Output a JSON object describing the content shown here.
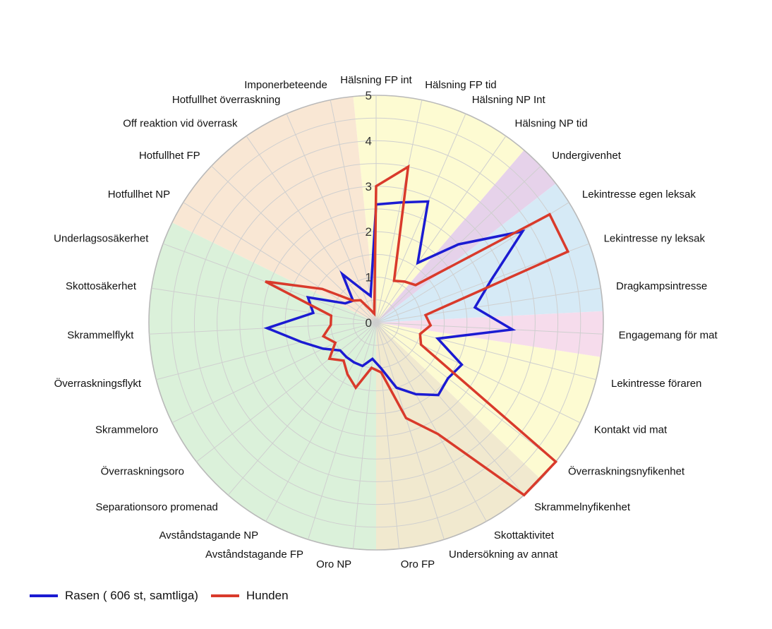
{
  "chart_data": {
    "type": "radar",
    "title": "",
    "rmax": 5,
    "ticks": [
      0,
      1,
      2,
      3,
      4,
      5
    ],
    "grid": true,
    "legend_position": "bottom-left",
    "categories": [
      "Hälsning FP int",
      "Hälsning FP tid",
      "Hälsning NP Int",
      "Hälsning NP tid",
      "Undergivenhet",
      "Lekintresse egen leksak",
      "Lekintresse ny leksak",
      "Dragkampsintresse",
      "Engagemang för mat",
      "Lekintresse föraren",
      "Kontakt vid mat",
      "Överraskningsnyfikenhet",
      "Skrammelnyfikenhet",
      "Skottaktivitet",
      "Undersökning av annat",
      "Oro FP",
      "Oro NP",
      "Avståndstagande FP",
      "Avståndstagande NP",
      "Separationsoro promenad",
      "Överraskningsoro",
      "Skrammeloro",
      "Överraskningsflykt",
      "Skrammelflykt",
      "Skottosäkerhet",
      "Underlagsosäkerhet",
      "Hotfullhet NP",
      "Hotfullhet FP",
      "Off reaktion vid överrask",
      "Hotfullhet överraskning",
      "Imponerbeteende"
    ],
    "sectors": [
      {
        "from": 0,
        "to": 3,
        "color": "#fdfbd2"
      },
      {
        "from": 4,
        "to": 4,
        "color": "#e6d2ea"
      },
      {
        "from": 5,
        "to": 7,
        "color": "#d6eaf6"
      },
      {
        "from": 8,
        "to": 8,
        "color": "#f6dcec"
      },
      {
        "from": 9,
        "to": 11,
        "color": "#fdfbd2"
      },
      {
        "from": 12,
        "to": 15,
        "color": "#f1e9cf"
      },
      {
        "from": 16,
        "to": 25,
        "color": "#dbf1da"
      },
      {
        "from": 26,
        "to": 30,
        "color": "#f9e7d4"
      }
    ],
    "series": [
      {
        "name": "Rasen ( 606 st, samtliga)",
        "color": "#1b1bd2",
        "values": [
          2.6,
          2.7,
          2.9,
          1.6,
          2.5,
          3.8,
          2.7,
          2.2,
          3.0,
          1.4,
          2.1,
          2.0,
          2.1,
          1.8,
          1.5,
          1.0,
          0.8,
          1.0,
          1.0,
          1.0,
          1.0,
          1.3,
          1.7,
          2.4,
          1.4,
          1.6,
          0.8,
          0.7,
          1.3,
          0.8,
          0.6
        ]
      },
      {
        "name": "Hunden",
        "color": "#d93a2b",
        "values": [
          3.0,
          3.5,
          1.0,
          1.1,
          1.2,
          4.5,
          4.5,
          1.1,
          1.2,
          1.0,
          1.1,
          5.0,
          5.0,
          2.8,
          2.2,
          1.1,
          1.0,
          1.5,
          1.3,
          1.1,
          1.3,
          1.0,
          1.2,
          1.0,
          1.0,
          2.6,
          1.4,
          0.7,
          0.6,
          0.3,
          0.2
        ]
      }
    ]
  }
}
